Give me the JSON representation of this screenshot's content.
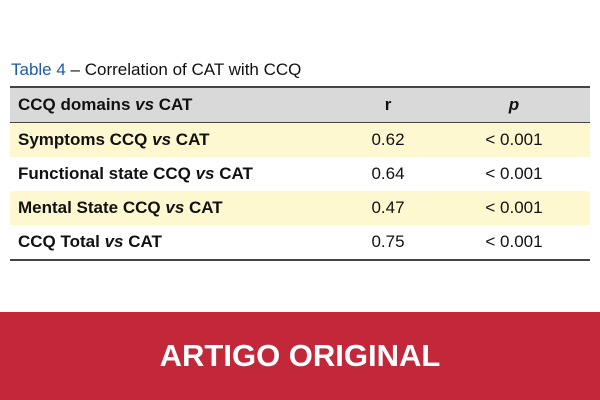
{
  "caption": {
    "label": "Table 4",
    "text": " – Correlation of CAT with CCQ"
  },
  "table": {
    "headers": {
      "domain_pre": "CCQ domains ",
      "vs": "vs",
      "domain_post": " CAT",
      "r": "r",
      "p": "p"
    },
    "rows": [
      {
        "pre": "Symptoms CCQ ",
        "vs": "vs",
        "post": " CAT",
        "r": "0.62",
        "p": "< 0.001"
      },
      {
        "pre": "Functional state CCQ ",
        "vs": "vs",
        "post": " CAT",
        "r": "0.64",
        "p": "< 0.001"
      },
      {
        "pre": "Mental State CCQ ",
        "vs": "vs",
        "post": " CAT",
        "r": "0.47",
        "p": "< 0.001"
      },
      {
        "pre": "CCQ Total ",
        "vs": "vs",
        "post": " CAT",
        "r": "0.75",
        "p": "< 0.001"
      }
    ]
  },
  "banner": {
    "text": "ARTIGO ORIGINAL"
  },
  "colors": {
    "banner": "#c3273a",
    "highlight_row": "#fdf8cf",
    "header_row": "#d9d9d9",
    "caption_label": "#1f5aa6"
  }
}
